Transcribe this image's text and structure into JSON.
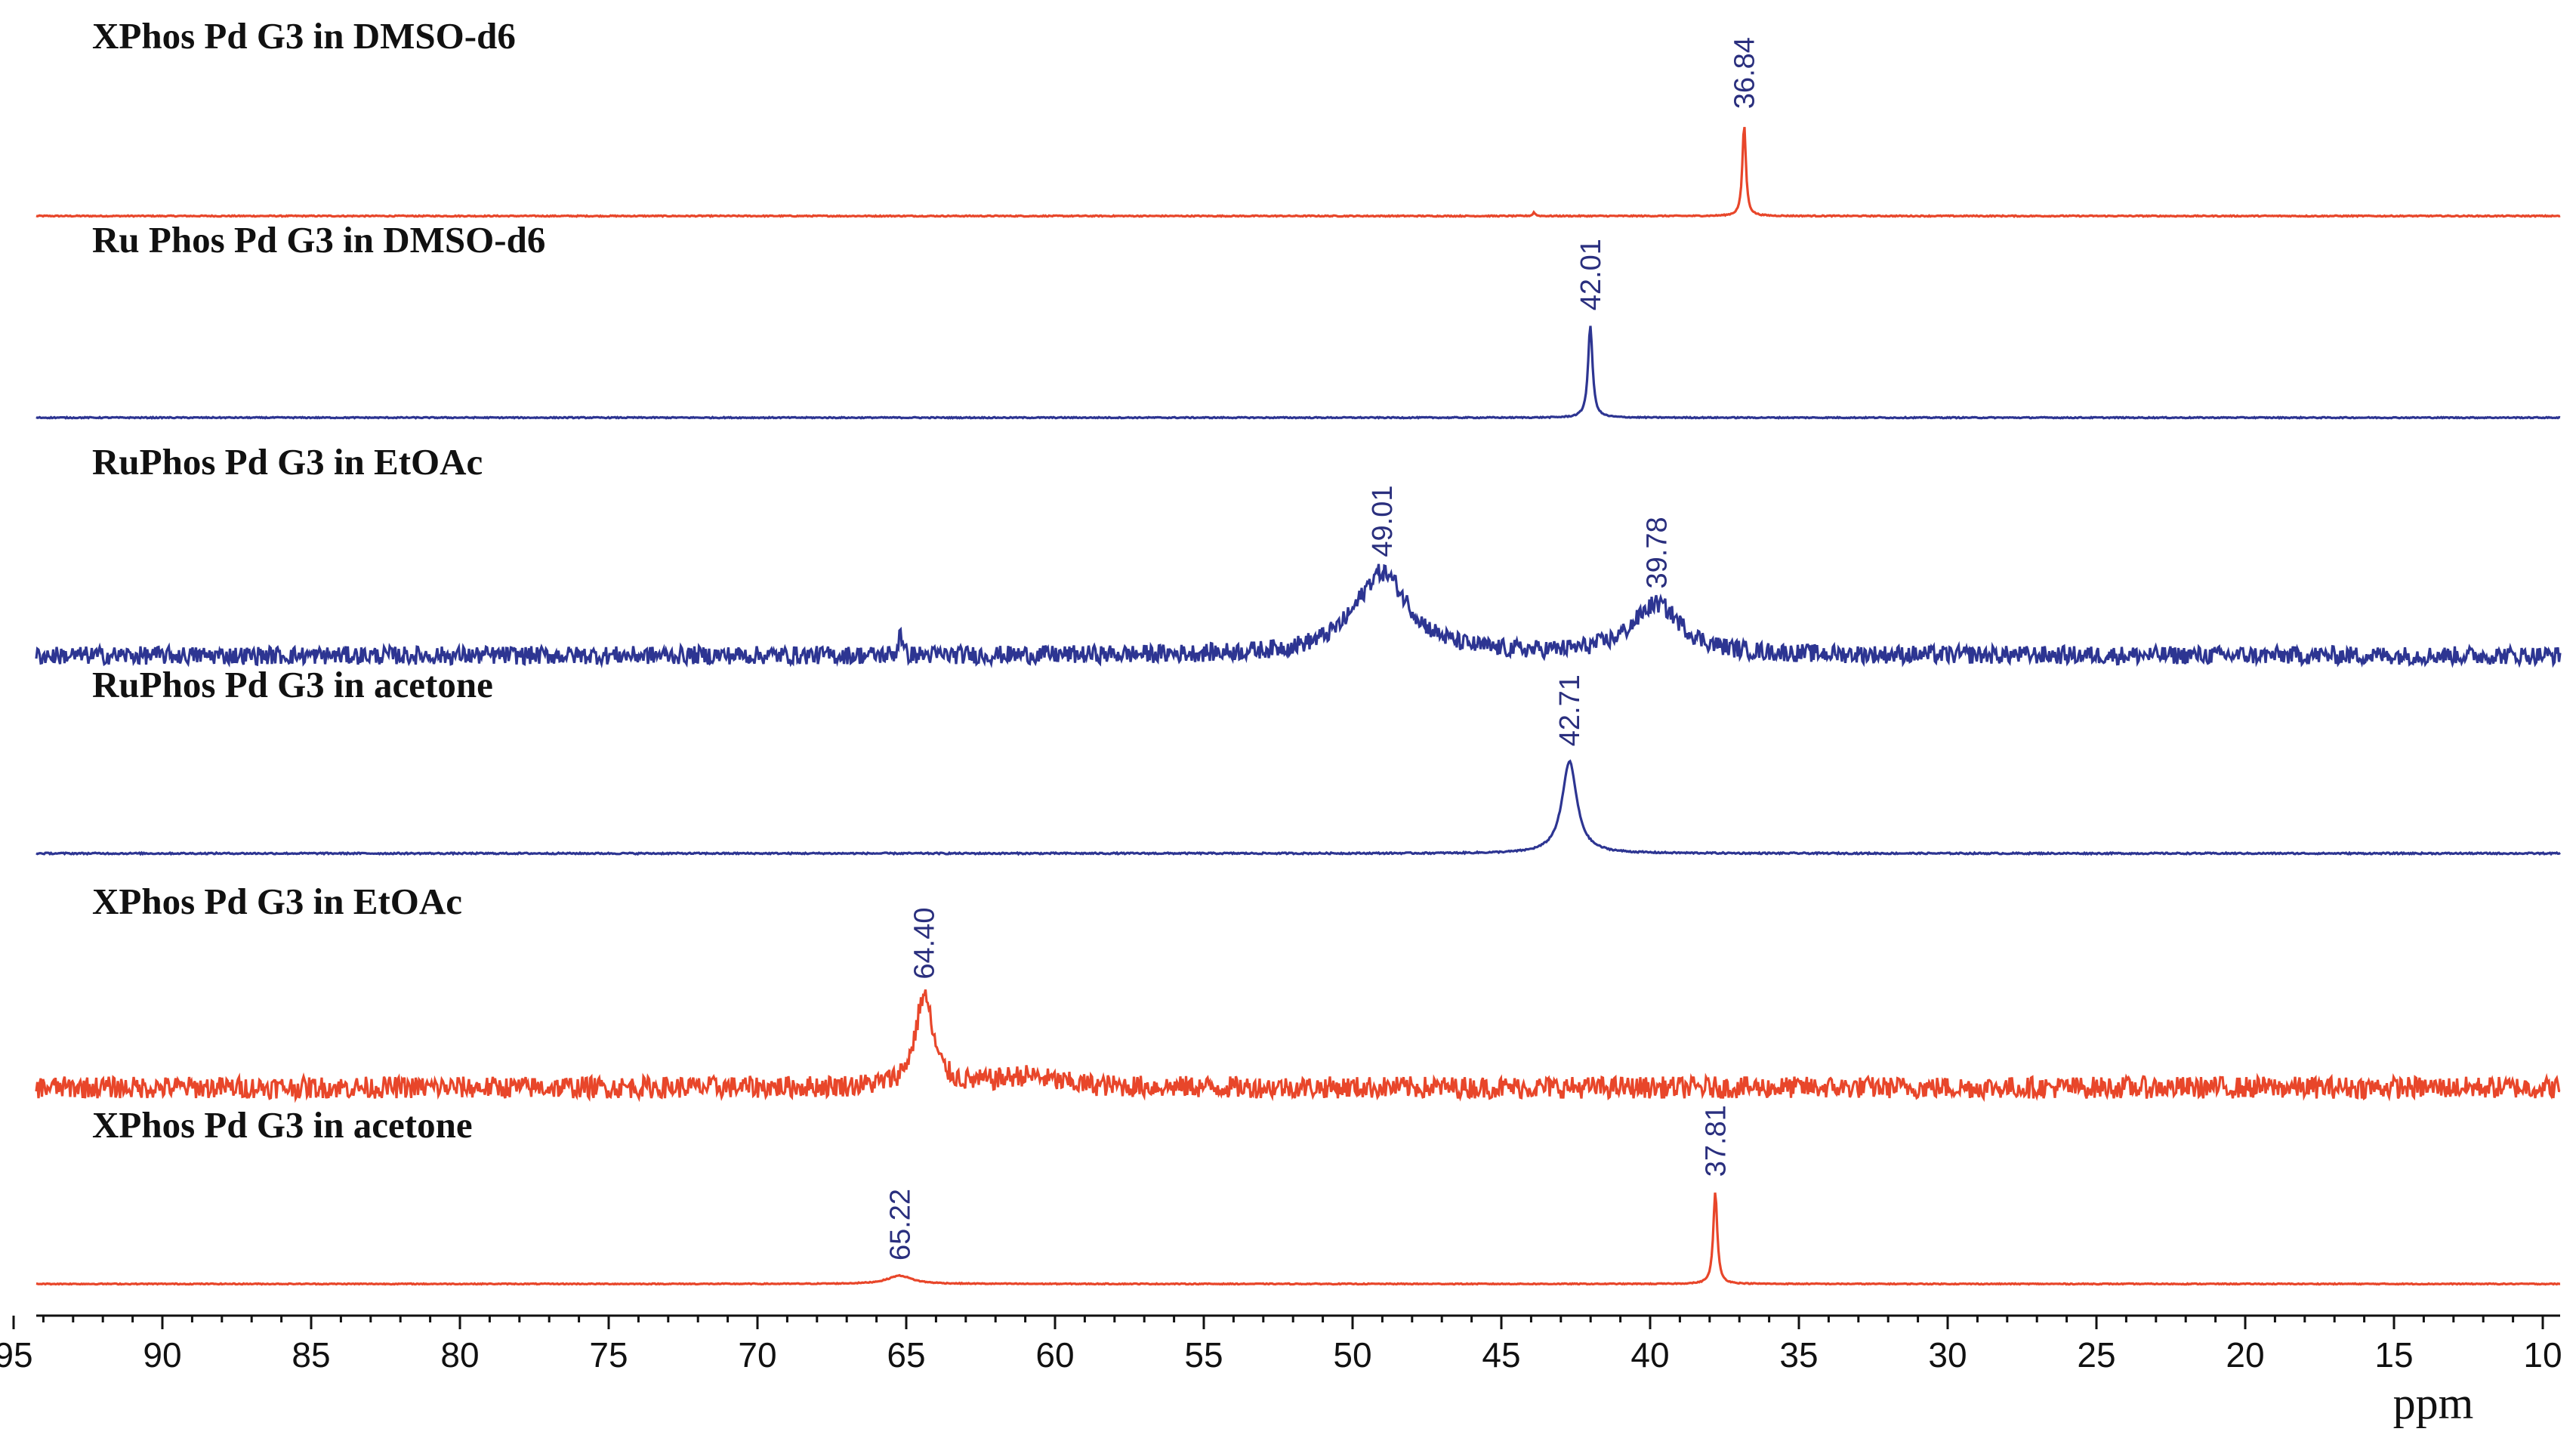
{
  "chart_data": {
    "type": "line",
    "title": "",
    "xlabel": "ppm",
    "ylabel": "",
    "x_axis": {
      "min": 95,
      "max": 10,
      "reversed": true,
      "tick_step": 5
    },
    "x_ticks": [
      "95",
      "90",
      "85",
      "80",
      "75",
      "70",
      "65",
      "60",
      "55",
      "50",
      "45",
      "40",
      "35",
      "30",
      "25",
      "20",
      "15",
      "10"
    ],
    "colors": {
      "xphos": "#e8462a",
      "ruphos": "#2d3592"
    },
    "series": [
      {
        "name": "XPhos Pd G3 in DMSO-d6",
        "color": "#e8462a",
        "noise": 0.006,
        "peaks": [
          {
            "ppm": 36.84,
            "label": "36.84",
            "height": 1.0,
            "width": 0.07,
            "labeled": true
          },
          {
            "ppm": 43.9,
            "label": "",
            "height": 0.04,
            "width": 0.05,
            "labeled": false
          }
        ]
      },
      {
        "name": "Ru Phos Pd G3 in DMSO-d6",
        "color": "#2d3592",
        "noise": 0.006,
        "peaks": [
          {
            "ppm": 42.01,
            "label": "42.01",
            "height": 1.0,
            "width": 0.09,
            "labeled": true
          }
        ]
      },
      {
        "name": "RuPhos Pd G3 in EtOAc",
        "color": "#2d3592",
        "noise": 0.1,
        "peaks": [
          {
            "ppm": 49.01,
            "label": "49.01",
            "height": 0.9,
            "width": 1.1,
            "labeled": true
          },
          {
            "ppm": 39.78,
            "label": "39.78",
            "height": 0.55,
            "width": 1.0,
            "labeled": true
          },
          {
            "ppm": 65.2,
            "label": "",
            "height": 0.35,
            "width": 0.05,
            "labeled": false
          }
        ]
      },
      {
        "name": "RuPhos Pd G3 in acetone",
        "color": "#2d3592",
        "noise": 0.008,
        "peaks": [
          {
            "ppm": 42.71,
            "label": "42.71",
            "height": 1.0,
            "width": 0.3,
            "labeled": true
          }
        ]
      },
      {
        "name": "XPhos Pd G3 in EtOAc",
        "color": "#e8462a",
        "noise": 0.12,
        "peaks": [
          {
            "ppm": 64.4,
            "label": "64.40",
            "height": 1.0,
            "width": 0.35,
            "labeled": true
          },
          {
            "ppm": 61.0,
            "label": "",
            "height": 0.12,
            "width": 1.2,
            "labeled": false
          }
        ]
      },
      {
        "name": "XPhos Pd G3 in acetone",
        "color": "#e8462a",
        "noise": 0.005,
        "peaks": [
          {
            "ppm": 65.22,
            "label": "65.22",
            "height": 0.09,
            "width": 0.5,
            "labeled": true
          },
          {
            "ppm": 37.81,
            "label": "37.81",
            "height": 1.0,
            "width": 0.08,
            "labeled": true
          }
        ]
      }
    ]
  }
}
